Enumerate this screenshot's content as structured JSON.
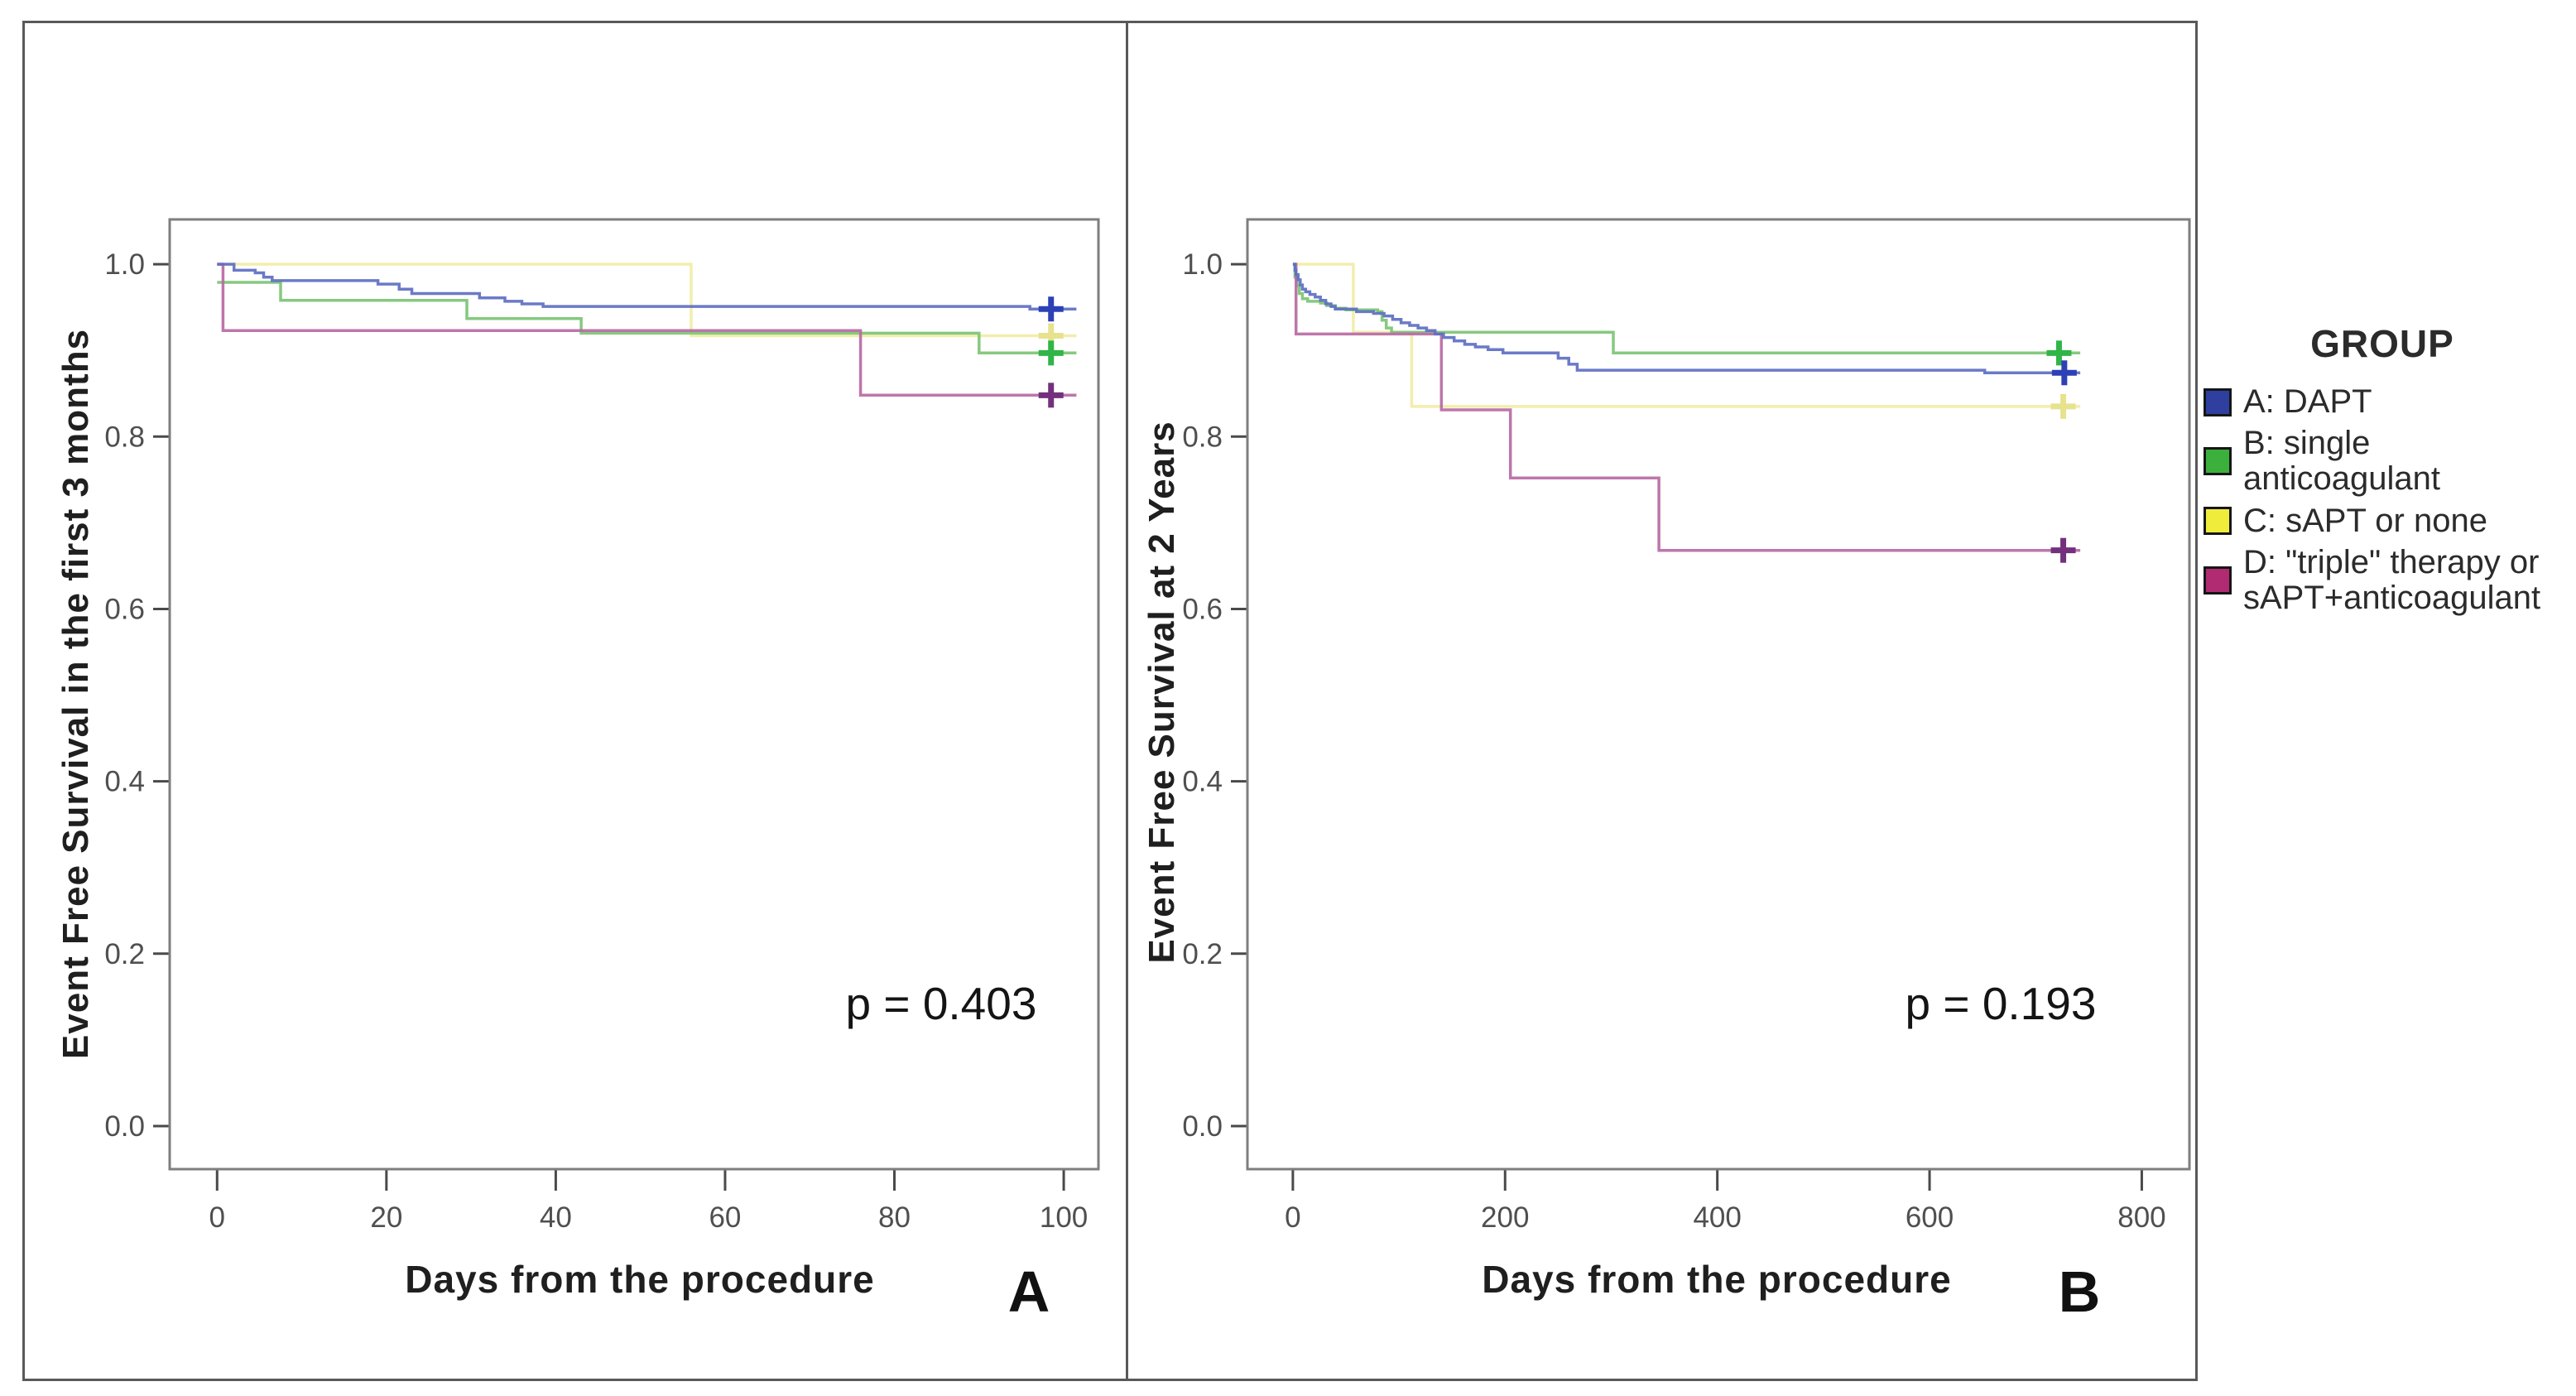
{
  "figure": {
    "description": "Two-panel Kaplan-Meier event-free survival figure"
  },
  "chart_data": [
    {
      "type": "line",
      "subtype": "kaplan-meier-step",
      "panel_label": "A",
      "title": "",
      "xlabel": "Days from the procedure",
      "ylabel": "Event Free Survival in the first 3 months",
      "p_value_label": "p = 0.403",
      "grid": false,
      "legend_position": "outside-right-of-figure",
      "x_ticks": [
        "0",
        "20",
        "40",
        "60",
        "80",
        "100"
      ],
      "x_tick_values": [
        0,
        20,
        40,
        60,
        80,
        100
      ],
      "y_ticks": [
        "0.0",
        "0.2",
        "0.4",
        "0.6",
        "0.8",
        "1.0"
      ],
      "y_tick_values": [
        0,
        0.2,
        0.4,
        0.6,
        0.8,
        1.0
      ],
      "xlim": [
        -5.6,
        104.1
      ],
      "ylim": [
        -0.05,
        1.052
      ],
      "series": [
        {
          "id": "c-sapt-or-none",
          "name": "C: sAPT or none",
          "color": "#f1eda6",
          "censor_color": "#e6e28e",
          "points": [
            [
              0,
              1.0
            ],
            [
              56,
              1.0
            ],
            [
              56,
              0.917
            ],
            [
              101.5,
              0.917
            ]
          ],
          "censors": [
            [
              98.5,
              0.917
            ]
          ]
        },
        {
          "id": "b-single-anticoagulant",
          "name": "B: single anticoagulant",
          "color": "#7cc474",
          "censor_color": "#2fb548",
          "points": [
            [
              0,
              0.979
            ],
            [
              7.5,
              0.979
            ],
            [
              7.5,
              0.958
            ],
            [
              29.5,
              0.958
            ],
            [
              29.5,
              0.937
            ],
            [
              43,
              0.937
            ],
            [
              43,
              0.92
            ],
            [
              90,
              0.92
            ],
            [
              90,
              0.897
            ],
            [
              101.5,
              0.897
            ]
          ],
          "censors": [
            [
              98.5,
              0.897
            ]
          ]
        },
        {
          "id": "d-triple-therapy",
          "name": "D: \"triple\" therapy or sAPT+anticoagulant",
          "color": "#b76aa4",
          "censor_color": "#73307d",
          "points": [
            [
              0,
              1.0
            ],
            [
              0.7,
              1.0
            ],
            [
              0.7,
              0.923
            ],
            [
              76,
              0.923
            ],
            [
              76,
              0.848
            ],
            [
              101.5,
              0.848
            ]
          ],
          "censors": [
            [
              98.5,
              0.848
            ]
          ]
        },
        {
          "id": "a-dapt",
          "name": "A: DAPT",
          "color": "#5e6fc2",
          "censor_color": "#2c41b5",
          "points": [
            [
              0,
              1.0
            ],
            [
              2,
              0.993
            ],
            [
              4.5,
              0.99
            ],
            [
              5.5,
              0.985
            ],
            [
              6.5,
              0.981
            ],
            [
              19,
              0.977
            ],
            [
              21.5,
              0.971
            ],
            [
              23,
              0.966
            ],
            [
              31,
              0.961
            ],
            [
              34,
              0.957
            ],
            [
              36,
              0.954
            ],
            [
              38.5,
              0.951
            ],
            [
              96,
              0.951
            ],
            [
              96,
              0.948
            ],
            [
              101.5,
              0.948
            ]
          ],
          "censors": [
            [
              98.5,
              0.948
            ]
          ]
        }
      ]
    },
    {
      "type": "line",
      "subtype": "kaplan-meier-step",
      "panel_label": "B",
      "title": "",
      "xlabel": "Days from the procedure",
      "ylabel": "Event Free Survival at 2 Years",
      "p_value_label": "p = 0.193",
      "grid": false,
      "legend_position": "outside-right-of-figure",
      "x_ticks": [
        "0",
        "200",
        "400",
        "600",
        "800"
      ],
      "x_tick_values": [
        0,
        200,
        400,
        600,
        800
      ],
      "y_ticks": [
        "0.0",
        "0.2",
        "0.4",
        "0.6",
        "0.8",
        "1.0"
      ],
      "y_tick_values": [
        0,
        0.2,
        0.4,
        0.6,
        0.8,
        1.0
      ],
      "xlim": [
        -42.8,
        844.9
      ],
      "ylim": [
        -0.05,
        1.052
      ],
      "series": [
        {
          "id": "c-sapt-or-none",
          "name": "C: sAPT or none",
          "color": "#f1eda6",
          "censor_color": "#e6e28e",
          "points": [
            [
              0,
              1.0
            ],
            [
              57,
              1.0
            ],
            [
              57,
              0.921
            ],
            [
              112,
              0.921
            ],
            [
              112,
              0.835
            ],
            [
              742,
              0.835
            ]
          ],
          "censors": [
            [
              726,
              0.835
            ]
          ]
        },
        {
          "id": "b-single-anticoagulant",
          "name": "B: single anticoagulant",
          "color": "#7cc474",
          "censor_color": "#2fb548",
          "points": [
            [
              0,
              1.0
            ],
            [
              2,
              0.985
            ],
            [
              4,
              0.975
            ],
            [
              6,
              0.966
            ],
            [
              9,
              0.96
            ],
            [
              14,
              0.957
            ],
            [
              26,
              0.955
            ],
            [
              32,
              0.952
            ],
            [
              40,
              0.949
            ],
            [
              50,
              0.947
            ],
            [
              80,
              0.945
            ],
            [
              84,
              0.935
            ],
            [
              88,
              0.926
            ],
            [
              93,
              0.921
            ],
            [
              302,
              0.921
            ],
            [
              302,
              0.897
            ],
            [
              742,
              0.897
            ]
          ],
          "censors": [
            [
              722,
              0.897
            ]
          ]
        },
        {
          "id": "d-triple-therapy",
          "name": "D: \"triple\" therapy or sAPT+anticoagulant",
          "color": "#b76aa4",
          "censor_color": "#73307d",
          "points": [
            [
              0,
              1.0
            ],
            [
              3,
              1.0
            ],
            [
              3,
              0.919
            ],
            [
              140,
              0.919
            ],
            [
              140,
              0.831
            ],
            [
              205,
              0.831
            ],
            [
              205,
              0.752
            ],
            [
              345,
              0.752
            ],
            [
              345,
              0.668
            ],
            [
              742,
              0.668
            ]
          ],
          "censors": [
            [
              726,
              0.668
            ]
          ]
        },
        {
          "id": "a-dapt",
          "name": "A: DAPT",
          "color": "#5e6fc2",
          "censor_color": "#2c41b5",
          "points": [
            [
              0,
              1.0
            ],
            [
              2,
              0.993
            ],
            [
              3,
              0.988
            ],
            [
              5,
              0.982
            ],
            [
              7,
              0.976
            ],
            [
              9,
              0.971
            ],
            [
              12,
              0.968
            ],
            [
              16,
              0.965
            ],
            [
              21,
              0.962
            ],
            [
              26,
              0.958
            ],
            [
              31,
              0.954
            ],
            [
              36,
              0.951
            ],
            [
              40,
              0.948
            ],
            [
              60,
              0.945
            ],
            [
              76,
              0.943
            ],
            [
              86,
              0.94
            ],
            [
              94,
              0.936
            ],
            [
              102,
              0.932
            ],
            [
              110,
              0.929
            ],
            [
              118,
              0.926
            ],
            [
              126,
              0.923
            ],
            [
              134,
              0.919
            ],
            [
              142,
              0.915
            ],
            [
              152,
              0.911
            ],
            [
              162,
              0.907
            ],
            [
              172,
              0.904
            ],
            [
              184,
              0.901
            ],
            [
              198,
              0.897
            ],
            [
              250,
              0.891
            ],
            [
              260,
              0.884
            ],
            [
              268,
              0.877
            ],
            [
              640,
              0.877
            ],
            [
              652,
              0.874
            ],
            [
              742,
              0.874
            ]
          ],
          "censors": [
            [
              727,
              0.874
            ]
          ]
        }
      ]
    }
  ],
  "legend": {
    "title": "GROUP",
    "items": [
      {
        "id": "a-dapt",
        "swatch_color": "#2e3f9f",
        "label_lines": [
          "A: DAPT"
        ]
      },
      {
        "id": "b-single-anticoagulant",
        "swatch_color": "#3cb03c",
        "label_lines": [
          "B: single anticoagulant"
        ]
      },
      {
        "id": "c-sapt-or-none",
        "swatch_color": "#f0ec3c",
        "label_lines": [
          "C: sAPT or none"
        ]
      },
      {
        "id": "d-triple-therapy",
        "swatch_color": "#b02b72",
        "label_lines": [
          "D: \"triple\" therapy or",
          "sAPT+anticoagulant"
        ]
      }
    ]
  }
}
